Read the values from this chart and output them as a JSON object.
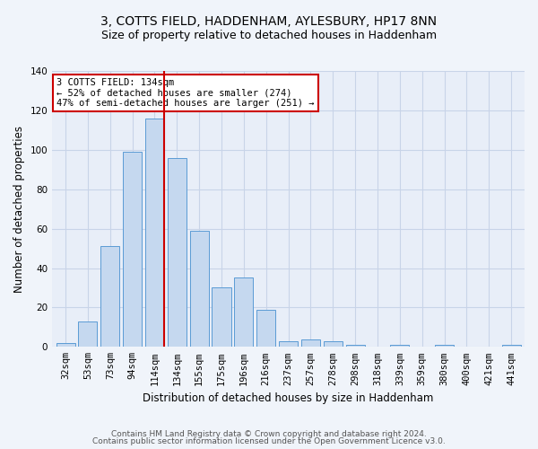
{
  "title": "3, COTTS FIELD, HADDENHAM, AYLESBURY, HP17 8NN",
  "subtitle": "Size of property relative to detached houses in Haddenham",
  "xlabel": "Distribution of detached houses by size in Haddenham",
  "ylabel": "Number of detached properties",
  "footer_line1": "Contains HM Land Registry data © Crown copyright and database right 2024.",
  "footer_line2": "Contains public sector information licensed under the Open Government Licence v3.0.",
  "categories": [
    "32sqm",
    "53sqm",
    "73sqm",
    "94sqm",
    "114sqm",
    "134sqm",
    "155sqm",
    "175sqm",
    "196sqm",
    "216sqm",
    "237sqm",
    "257sqm",
    "278sqm",
    "298sqm",
    "318sqm",
    "339sqm",
    "359sqm",
    "380sqm",
    "400sqm",
    "421sqm",
    "441sqm"
  ],
  "values": [
    2,
    13,
    51,
    99,
    116,
    96,
    59,
    30,
    35,
    19,
    3,
    4,
    3,
    1,
    0,
    1,
    0,
    1,
    0,
    0,
    1
  ],
  "bar_color": "#c5d8ef",
  "bar_edge_color": "#5b9bd5",
  "highlight_bar_index": 4,
  "highlight_right_edge_color": "#cc0000",
  "annotation_text": "3 COTTS FIELD: 134sqm\n← 52% of detached houses are smaller (274)\n47% of semi-detached houses are larger (251) →",
  "annotation_box_facecolor": "#ffffff",
  "annotation_box_edgecolor": "#cc0000",
  "ylim": [
    0,
    140
  ],
  "yticks": [
    0,
    20,
    40,
    60,
    80,
    100,
    120,
    140
  ],
  "grid_color": "#c8d4e8",
  "fig_bg_color": "#f0f4fa",
  "plot_bg_color": "#e8eef8",
  "title_fontsize": 10,
  "subtitle_fontsize": 9,
  "axis_label_fontsize": 8.5,
  "tick_fontsize": 7.5,
  "annotation_fontsize": 7.5,
  "footer_fontsize": 6.5
}
